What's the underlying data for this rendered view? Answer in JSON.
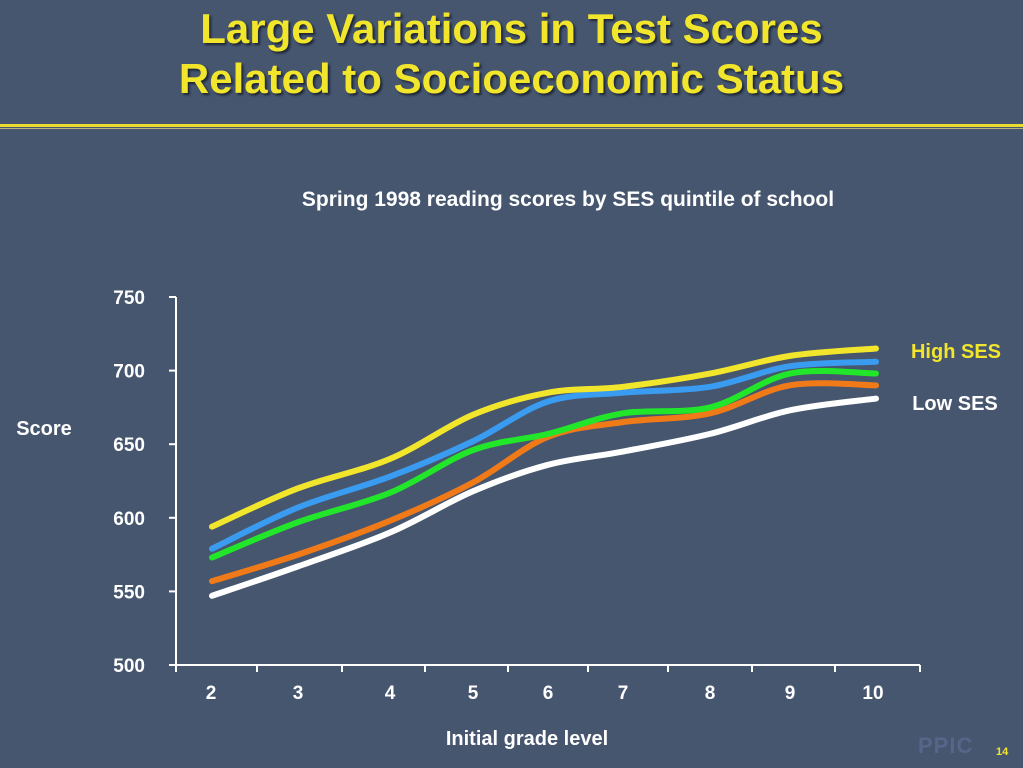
{
  "slide": {
    "title_line1": "Large Variations in Test Scores",
    "title_line2": "Related to Socioeconomic Status",
    "logo": "PPIC",
    "page_number": "14"
  },
  "chart_data": {
    "type": "line",
    "title": "Spring 1998 reading scores by SES quintile of school",
    "xlabel": "Initial grade level",
    "ylabel": "Score",
    "x": [
      2,
      3,
      4,
      5,
      6,
      7,
      8,
      9,
      10
    ],
    "x_tick_labels": [
      "2",
      "3",
      "4",
      "5",
      "6",
      "7",
      "8",
      "9",
      "10"
    ],
    "y_ticks": [
      500,
      550,
      600,
      650,
      700,
      750
    ],
    "y_tick_labels": [
      "500",
      "550",
      "600",
      "650",
      "700",
      "750"
    ],
    "ylim": [
      500,
      750
    ],
    "grid": false,
    "legend": {
      "top_label": "High SES",
      "bottom_label": "Low SES",
      "placement": "right"
    },
    "series": [
      {
        "color": "#ffffff",
        "values": [
          547,
          567,
          590,
          618,
          636,
          645,
          657,
          673,
          681
        ]
      },
      {
        "color": "#f07a18",
        "values": [
          557,
          575,
          598,
          624,
          655,
          665,
          671,
          690,
          690
        ]
      },
      {
        "color": "#22e62a",
        "values": [
          573,
          597,
          617,
          646,
          657,
          671,
          675,
          698,
          698
        ]
      },
      {
        "color": "#3a9cf0",
        "values": [
          579,
          607,
          628,
          652,
          679,
          685,
          689,
          703,
          706
        ]
      },
      {
        "color": "#f2e62c",
        "values": [
          594,
          620,
          640,
          670,
          685,
          689,
          698,
          710,
          715
        ]
      }
    ]
  }
}
